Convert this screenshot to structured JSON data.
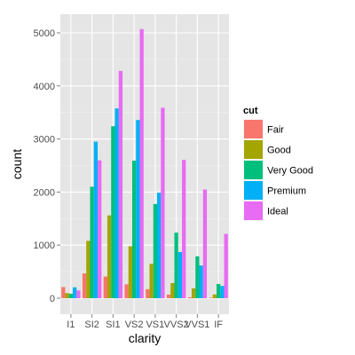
{
  "chart_data": {
    "type": "bar",
    "xlabel": "clarity",
    "ylabel": "count",
    "ylim": [
      0,
      5300
    ],
    "yticks": [
      0,
      1000,
      2000,
      3000,
      4000,
      5000
    ],
    "grid": true,
    "legend_position": "right",
    "legend_title": "cut",
    "categories": [
      "I1",
      "SI2",
      "SI1",
      "VS2",
      "VS1",
      "VVS2",
      "VVS1",
      "IF"
    ],
    "series": [
      {
        "name": "Fair",
        "color": "#F8766D",
        "values": [
          210,
          466,
          408,
          261,
          170,
          69,
          17,
          9
        ]
      },
      {
        "name": "Good",
        "color": "#A3A500",
        "values": [
          96,
          1081,
          1560,
          978,
          648,
          286,
          186,
          71
        ]
      },
      {
        "name": "Very Good",
        "color": "#00BF7D",
        "values": [
          84,
          2100,
          3240,
          2591,
          1775,
          1235,
          789,
          268
        ]
      },
      {
        "name": "Premium",
        "color": "#00B0F6",
        "values": [
          205,
          2949,
          3575,
          3357,
          1989,
          870,
          616,
          230
        ]
      },
      {
        "name": "Ideal",
        "color": "#E76BF3",
        "values": [
          146,
          2598,
          4282,
          5071,
          3589,
          2606,
          2047,
          1212
        ]
      }
    ]
  }
}
